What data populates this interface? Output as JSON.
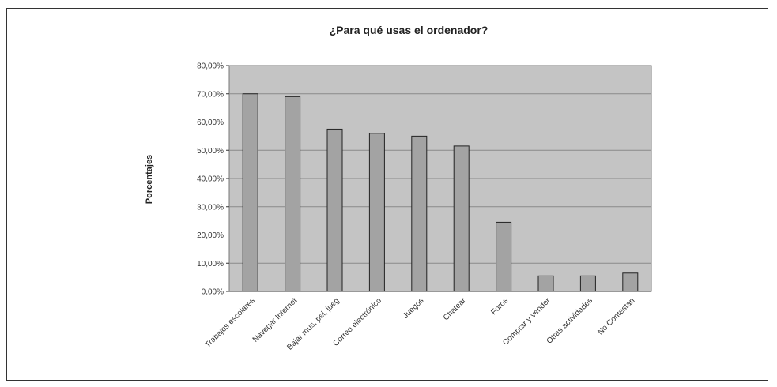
{
  "chart_data": {
    "type": "bar",
    "title": "¿Para qué usas el ordenador?",
    "xlabel": "",
    "ylabel": "Porcentajes",
    "ylim": [
      0,
      80
    ],
    "yticks": [
      "0,00%",
      "10,00%",
      "20,00%",
      "30,00%",
      "40,00%",
      "50,00%",
      "60,00%",
      "70,00%",
      "80,00%"
    ],
    "grid": true,
    "legend": "none",
    "categories": [
      "Trabajos escolares",
      "Navegar Internet",
      "Bajar mus, pel, jueg",
      "Correo electrónico",
      "Juegos",
      "Chatear",
      "Foros",
      "Comprar y vender",
      "Otras actividades",
      "No Contestan"
    ],
    "values": [
      70,
      69,
      57.5,
      56,
      55,
      51.5,
      24.5,
      5.5,
      5.5,
      6.5
    ],
    "colors": {
      "bar": "#a3a3a3",
      "bar_stroke": "#222222",
      "plot_bg": "#c4c4c4",
      "grid": "#8a8a8a"
    }
  }
}
